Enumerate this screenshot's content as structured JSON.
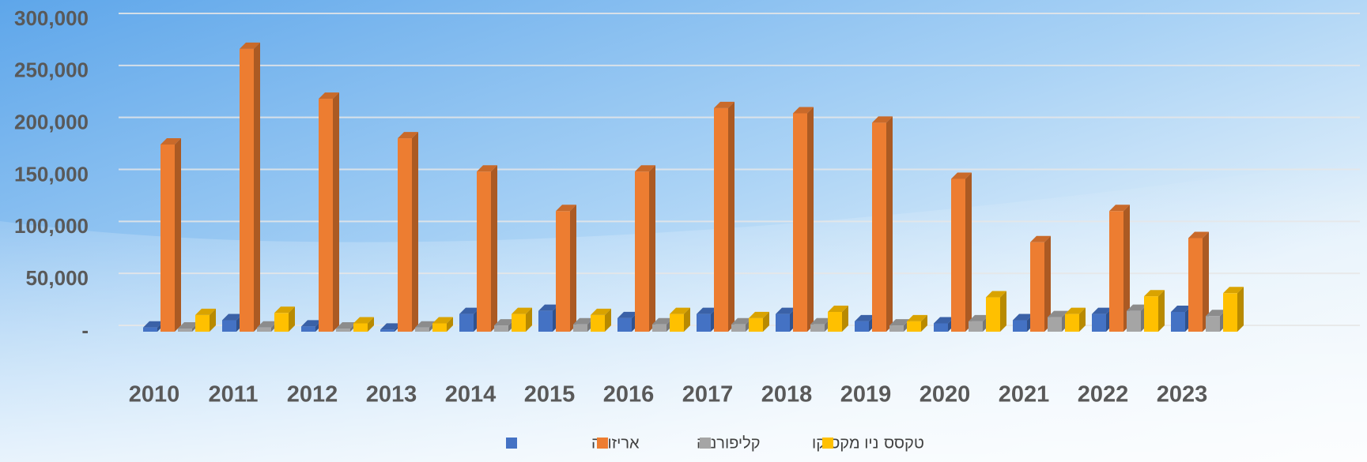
{
  "chart_data": {
    "type": "bar3d",
    "categories": [
      "2010",
      "2011",
      "2012",
      "2013",
      "2014",
      "2015",
      "2016",
      "2017",
      "2018",
      "2019",
      "2020",
      "2021",
      "2022",
      "2023"
    ],
    "series": [
      {
        "name": "אריזונה",
        "color": "#4472c4",
        "values": [
          4000,
          11000,
          5000,
          2000,
          17000,
          20000,
          13000,
          17000,
          17000,
          10000,
          8000,
          11000,
          17000,
          19000
        ]
      },
      {
        "name": "קליפורניה",
        "color": "#ed7d31",
        "values": [
          180000,
          272000,
          224000,
          186000,
          154000,
          116000,
          154000,
          215000,
          210000,
          201000,
          147000,
          86000,
          116000,
          90000
        ]
      },
      {
        "name": "ניו מקסיקו",
        "color": "#a5a5a5",
        "values": [
          3000,
          4000,
          3000,
          4000,
          6000,
          7000,
          7000,
          7000,
          7000,
          6000,
          10000,
          14000,
          20000,
          15000
        ]
      },
      {
        "name": "טקסס",
        "color": "#ffc000",
        "values": [
          16000,
          18000,
          8000,
          8000,
          17000,
          16000,
          17000,
          13000,
          19000,
          10000,
          33000,
          17000,
          34000,
          37000
        ]
      }
    ],
    "ylim": [
      0,
      300000
    ],
    "yticks": [
      {
        "value": 0,
        "label": "-"
      },
      {
        "value": 50000,
        "label": "50,000"
      },
      {
        "value": 100000,
        "label": "100,000"
      },
      {
        "value": 150000,
        "label": "150,000"
      },
      {
        "value": 200000,
        "label": "200,000"
      },
      {
        "value": 250000,
        "label": "250,000"
      },
      {
        "value": 300000,
        "label": "300,000"
      }
    ],
    "grid": true,
    "legend": "bottom"
  }
}
